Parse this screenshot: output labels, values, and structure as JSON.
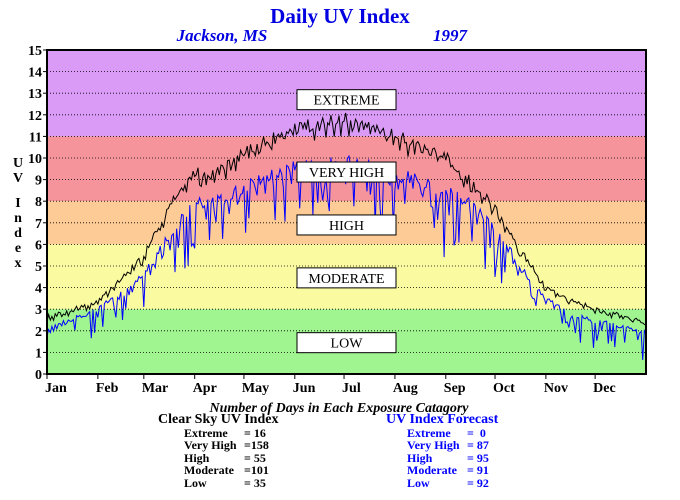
{
  "chart_data": {
    "type": "line",
    "title": "Daily UV Index",
    "subtitle_location": "Jackson, MS",
    "subtitle_year": "1997",
    "ylabel": "UV Index",
    "ylim": [
      0,
      15
    ],
    "yticks": [
      "0",
      "1",
      "2",
      "3",
      "4",
      "5",
      "6",
      "7",
      "8",
      "9",
      "10",
      "11",
      "12",
      "13",
      "14",
      "15"
    ],
    "xlim": [
      0,
      365
    ],
    "months": [
      "Jan",
      "Feb",
      "Mar",
      "Apr",
      "May",
      "Jun",
      "Jul",
      "Aug",
      "Sep",
      "Oct",
      "Nov",
      "Dec"
    ],
    "month_start_day": [
      0,
      31,
      59,
      90,
      120,
      151,
      181,
      212,
      243,
      273,
      304,
      334
    ],
    "categories": [
      {
        "name": "EXTREME",
        "from": 11,
        "to": 15,
        "color": "#d99bf5",
        "label_y": 12.7
      },
      {
        "name": "VERY HIGH",
        "from": 8,
        "to": 11,
        "color": "#f5949a",
        "label_y": 9.35
      },
      {
        "name": "HIGH",
        "from": 6,
        "to": 8,
        "color": "#fccb96",
        "label_y": 6.9
      },
      {
        "name": "MODERATE",
        "from": 3,
        "to": 6,
        "color": "#fafaa0",
        "label_y": 4.45
      },
      {
        "name": "LOW",
        "from": 0,
        "to": 3,
        "color": "#a0f590",
        "label_y": 1.45
      }
    ],
    "grid": true,
    "series": [
      {
        "name": "Clear Sky UV Index",
        "color": "#000000",
        "envelope": [
          [
            0,
            2.6
          ],
          [
            31,
            3.3
          ],
          [
            59,
            5.4
          ],
          [
            75,
            7.8
          ],
          [
            90,
            9.2
          ],
          [
            105,
            9.3
          ],
          [
            120,
            10.1
          ],
          [
            135,
            10.8
          ],
          [
            151,
            11.2
          ],
          [
            166,
            11.5
          ],
          [
            181,
            11.7
          ],
          [
            196,
            11.4
          ],
          [
            212,
            11.0
          ],
          [
            227,
            10.3
          ],
          [
            243,
            9.9
          ],
          [
            258,
            8.8
          ],
          [
            273,
            7.6
          ],
          [
            289,
            5.6
          ],
          [
            304,
            4.0
          ],
          [
            319,
            3.4
          ],
          [
            334,
            3.0
          ],
          [
            349,
            2.7
          ],
          [
            365,
            2.4
          ]
        ],
        "seed": 7,
        "variation": [
          -0.6,
          0.4
        ]
      },
      {
        "name": "UV Index Forecast",
        "color": "#0000ff",
        "envelope": [
          [
            0,
            2.0
          ],
          [
            31,
            2.9
          ],
          [
            59,
            4.5
          ],
          [
            75,
            6.3
          ],
          [
            90,
            7.8
          ],
          [
            105,
            7.8
          ],
          [
            120,
            8.4
          ],
          [
            135,
            9.0
          ],
          [
            151,
            9.3
          ],
          [
            166,
            9.5
          ],
          [
            181,
            9.6
          ],
          [
            196,
            9.4
          ],
          [
            212,
            9.1
          ],
          [
            227,
            8.7
          ],
          [
            243,
            8.3
          ],
          [
            258,
            7.7
          ],
          [
            273,
            6.6
          ],
          [
            289,
            4.8
          ],
          [
            304,
            3.4
          ],
          [
            319,
            2.7
          ],
          [
            334,
            2.4
          ],
          [
            349,
            2.1
          ],
          [
            365,
            1.8
          ]
        ],
        "seed": 13,
        "variation": [
          -3.5,
          0.6
        ]
      }
    ]
  },
  "stats_title": "Number of Days in Each Exposure Catagory",
  "clear_sky": {
    "header": "Clear Sky UV Index",
    "rows": [
      {
        "name": "Extreme",
        "val": "= 16"
      },
      {
        "name": "Very High",
        "val": "=158"
      },
      {
        "name": "High",
        "val": "= 55"
      },
      {
        "name": "Moderate",
        "val": "=101"
      },
      {
        "name": "Low",
        "val": "= 35"
      }
    ]
  },
  "forecast": {
    "header": "UV Index Forecast",
    "rows": [
      {
        "name": "Extreme",
        "val": "=  0"
      },
      {
        "name": "Very High",
        "val": "= 87"
      },
      {
        "name": "High",
        "val": "= 95"
      },
      {
        "name": "Moderate",
        "val": "= 91"
      },
      {
        "name": "Low",
        "val": "= 92"
      }
    ]
  }
}
